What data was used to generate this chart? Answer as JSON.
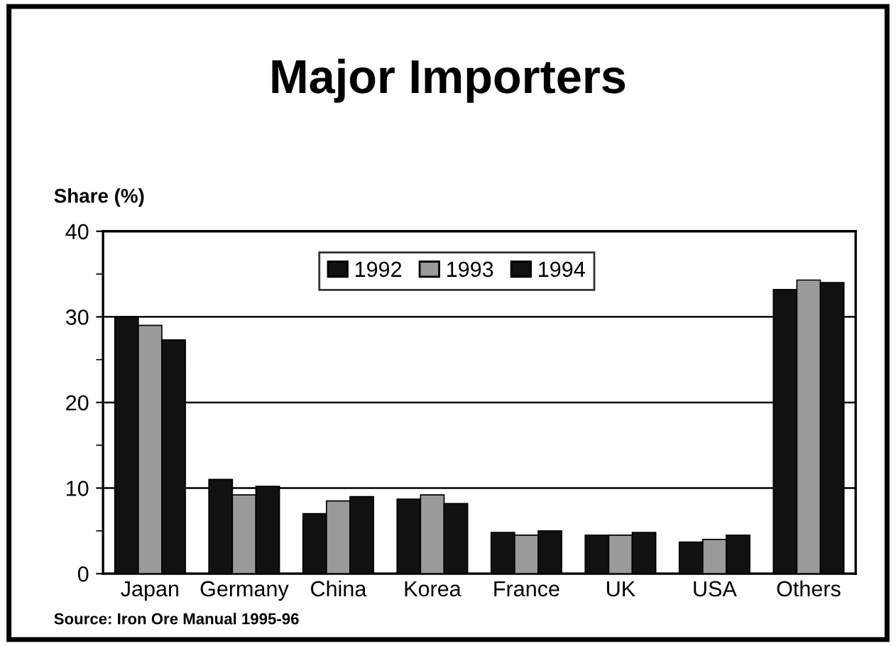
{
  "chart_data": {
    "type": "bar",
    "title": "Major Importers",
    "ylabel": "Share (%)",
    "categories": [
      "Japan",
      "Germany",
      "China",
      "Korea",
      "France",
      "UK",
      "USA",
      "Others"
    ],
    "series": [
      {
        "name": "1992",
        "color": "#111111",
        "values": [
          30,
          11,
          7,
          8.7,
          4.8,
          4.5,
          3.7,
          33.2
        ]
      },
      {
        "name": "1993",
        "color": "#9a9a9a",
        "values": [
          29,
          9.2,
          8.5,
          9.2,
          4.5,
          4.5,
          4,
          34.3
        ]
      },
      {
        "name": "1994",
        "color": "#111111",
        "values": [
          27.3,
          10.2,
          9,
          8.2,
          5,
          4.8,
          4.5,
          34
        ]
      }
    ],
    "ylim": [
      0,
      40
    ],
    "yticks": [
      0,
      {
        "value": 5,
        "label": null
      },
      10,
      {
        "value": 15,
        "label": null
      },
      20,
      {
        "value": 25,
        "label": null
      },
      30,
      {
        "value": 35,
        "label": null
      },
      40
    ],
    "grid": "y",
    "legend": "top",
    "annotations": [
      "Source: Iron Ore Manual 1995-96"
    ]
  }
}
